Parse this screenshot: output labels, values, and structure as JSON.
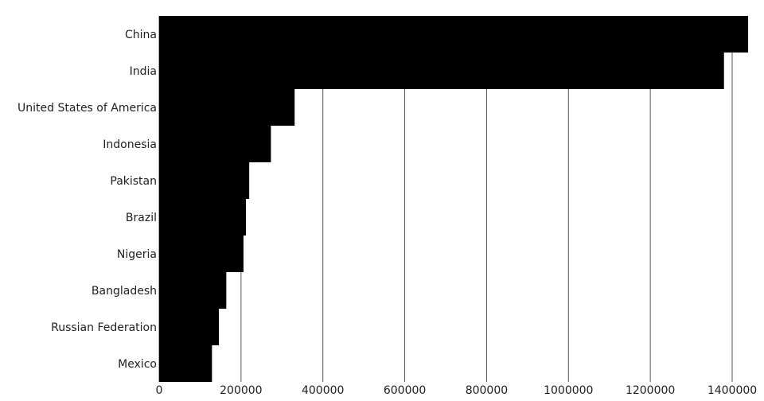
{
  "chart_data": {
    "type": "bar",
    "orientation": "horizontal",
    "categories": [
      "China",
      "India",
      "United States of America",
      "Indonesia",
      "Pakistan",
      "Brazil",
      "Nigeria",
      "Bangladesh",
      "Russian Federation",
      "Mexico"
    ],
    "values": [
      1439000,
      1380000,
      331000,
      273000,
      220000,
      212000,
      206000,
      164000,
      146000,
      129000
    ],
    "xlim": [
      0,
      1400000
    ],
    "xticks": [
      "0",
      "200000",
      "400000",
      "600000",
      "800000",
      "1000000",
      "1200000",
      "1400000"
    ],
    "grid": "vertical",
    "bar_color": "#000000",
    "grid_color": "#555555",
    "title": "",
    "xlabel": "",
    "ylabel": ""
  }
}
